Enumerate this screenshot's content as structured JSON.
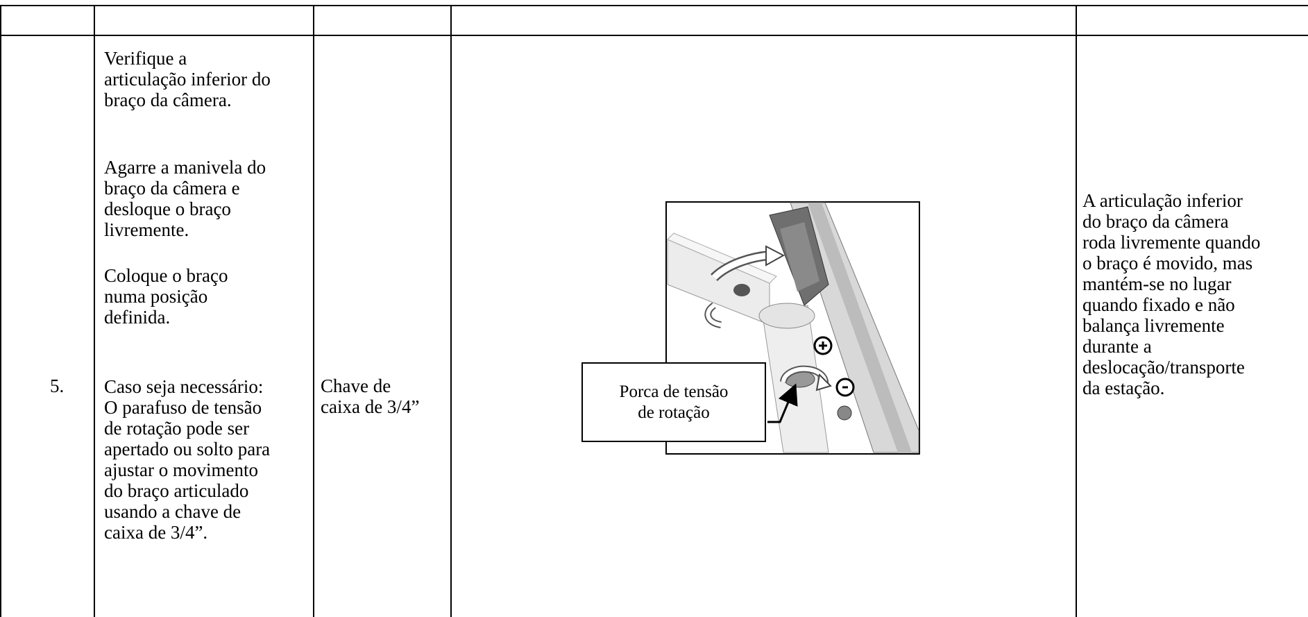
{
  "row": {
    "number": "5.",
    "instructions": [
      [
        "Verifique a",
        "articulação inferior do",
        "braço da câmera."
      ],
      [
        "Agarre a manivela do",
        "braço da câmera e",
        "desloque o braço",
        "livremente."
      ],
      [
        "Coloque o braço",
        "numa posição",
        "definida."
      ],
      [
        "Caso seja necessário:",
        "O parafuso de tensão",
        "de rotação pode ser",
        "apertado ou solto para",
        "ajustar o movimento",
        "do braço articulado",
        "usando a chave de",
        "caixa de 3/4”."
      ]
    ],
    "tool": [
      "Chave de",
      "caixa de 3/4”"
    ],
    "figure": {
      "callout": [
        "Porca de tensão",
        "de rotação"
      ]
    },
    "result": [
      "A articulação inferior",
      "do braço da câmera",
      "roda livremente quando",
      "o braço é movido, mas",
      "mantém-se no lugar",
      "quando fixado e não",
      "balança livremente",
      "durante a",
      "deslocação/transporte",
      "da estação."
    ]
  }
}
